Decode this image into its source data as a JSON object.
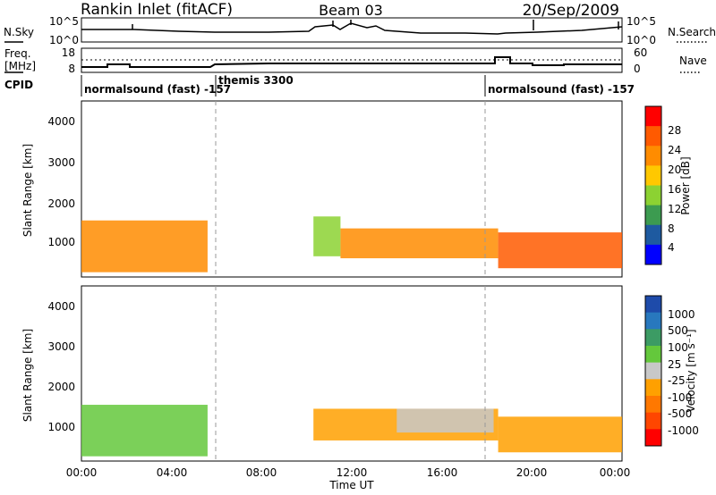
{
  "header": {
    "station": "Rankin Inlet (fitACF)",
    "beam": "Beam 03",
    "date": "20/Sep/2009"
  },
  "noise_panel": {
    "left_label": "N.Sky",
    "left_ticks": [
      "10^5",
      "10^0"
    ],
    "right_ticks": [
      "10^5",
      "10^0"
    ],
    "right_label": "N.Search"
  },
  "freq_panel": {
    "left_label_1": "Freq.",
    "left_label_2": "[MHz]",
    "left_ticks": [
      "18",
      "8"
    ],
    "right_ticks": [
      "60",
      "0"
    ],
    "right_label": "Nave"
  },
  "cpid_panel": {
    "label": "CPID",
    "modes": [
      "normalsound (fast) -157",
      "themis 3300",
      "normalsound (fast) -157"
    ]
  },
  "axes": {
    "ylabel": "Slant Range [km]",
    "xlabel": "Time UT",
    "y_ticks": [
      "1000",
      "2000",
      "3000",
      "4000"
    ],
    "x_ticks": [
      "00:00",
      "04:00",
      "08:00",
      "12:00",
      "16:00",
      "20:00",
      "00:00"
    ]
  },
  "power_colorbar": {
    "label": "Power [dB]",
    "ticks": [
      "28",
      "24",
      "20",
      "16",
      "12",
      "8",
      "4"
    ],
    "colors": [
      "#ff0000",
      "#ff5a00",
      "#ff8c00",
      "#ffc800",
      "#8cd232",
      "#3c9b50",
      "#1e5aa0",
      "#0000ff"
    ]
  },
  "velocity_colorbar": {
    "label": "Velocity [m s⁻¹]",
    "ticks": [
      "1000",
      "500",
      "100",
      "25",
      "-25",
      "-100",
      "-500",
      "-1000"
    ],
    "colors": [
      "#1e4baa",
      "#2878be",
      "#3c9b64",
      "#64c83c",
      "#c8c8c8",
      "#ffa000",
      "#ff7800",
      "#ff4600",
      "#ff0000"
    ]
  },
  "chart_data": {
    "type": "heatmap",
    "x": [
      "00:00",
      "04:00",
      "08:00",
      "12:00",
      "16:00",
      "20:00",
      "00:00"
    ],
    "xlim_hours": [
      0,
      24
    ],
    "ylim_km": [
      180,
      4600
    ],
    "mode_change_hours": [
      6,
      18
    ],
    "power_panel": {
      "clim_db": [
        0,
        32
      ],
      "regions": [
        {
          "t0": 0.0,
          "t1": 5.6,
          "r0": 300,
          "r1": 1600,
          "power": 24
        },
        {
          "t0": 10.3,
          "t1": 11.5,
          "r0": 700,
          "r1": 1700,
          "power": 12
        },
        {
          "t0": 11.5,
          "t1": 18.5,
          "r0": 650,
          "r1": 1400,
          "power": 22
        },
        {
          "t0": 18.5,
          "t1": 24.0,
          "r0": 400,
          "r1": 1300,
          "power": 26
        }
      ]
    },
    "velocity_panel": {
      "clim_ms": [
        -1000,
        1000
      ],
      "regions": [
        {
          "t0": 0.0,
          "t1": 5.6,
          "r0": 300,
          "r1": 1600,
          "velocity": 150
        },
        {
          "t0": 10.3,
          "t1": 18.5,
          "r0": 700,
          "r1": 1500,
          "velocity": -150
        },
        {
          "t0": 14.0,
          "t1": 18.3,
          "r0": 900,
          "r1": 1500,
          "velocity": 0
        },
        {
          "t0": 18.5,
          "t1": 24.0,
          "r0": 400,
          "r1": 1300,
          "velocity": -150
        }
      ]
    }
  }
}
